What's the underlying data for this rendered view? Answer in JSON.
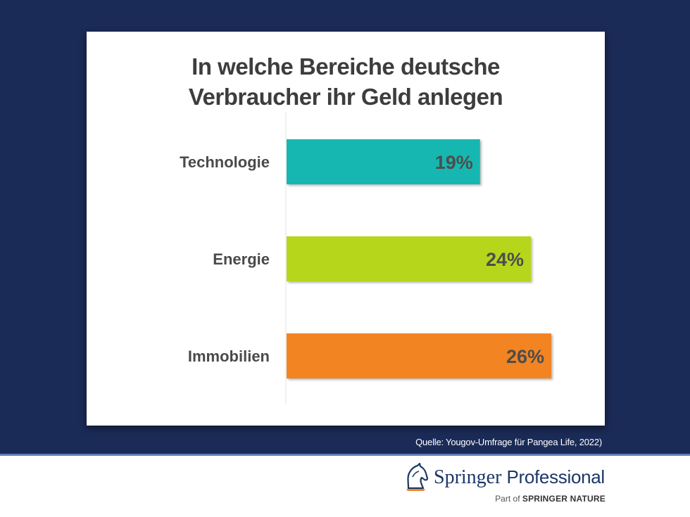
{
  "chart_data": {
    "type": "bar",
    "orientation": "horizontal",
    "title": "In welche Bereiche deutsche Verbraucher ihr Geld anlegen",
    "title_lines": [
      "In welche Bereiche deutsche",
      "Verbraucher ihr Geld anlegen"
    ],
    "categories": [
      "Technologie",
      "Energie",
      "Immobilien"
    ],
    "values": [
      19,
      24,
      26
    ],
    "value_labels": [
      "19%",
      "24%",
      "26%"
    ],
    "unit": "%",
    "colors": [
      "#12b7b0",
      "#b6d61c",
      "#f28424"
    ],
    "xlim": [
      0,
      26
    ],
    "grid": false,
    "legend": "none"
  },
  "source": "Quelle: Yougov-Umfrage für Pangea Life, 2022)",
  "brand": {
    "name_part1": "Springer",
    "name_part2": "Professional",
    "part_of_prefix": "Part of",
    "part_of_org": "SPRINGER NATURE",
    "logo_icon": "horse-head-icon"
  },
  "colors": {
    "background": "#1b2b57",
    "card": "#ffffff",
    "text": "#3d3d3d",
    "brand": "#1b3768"
  }
}
